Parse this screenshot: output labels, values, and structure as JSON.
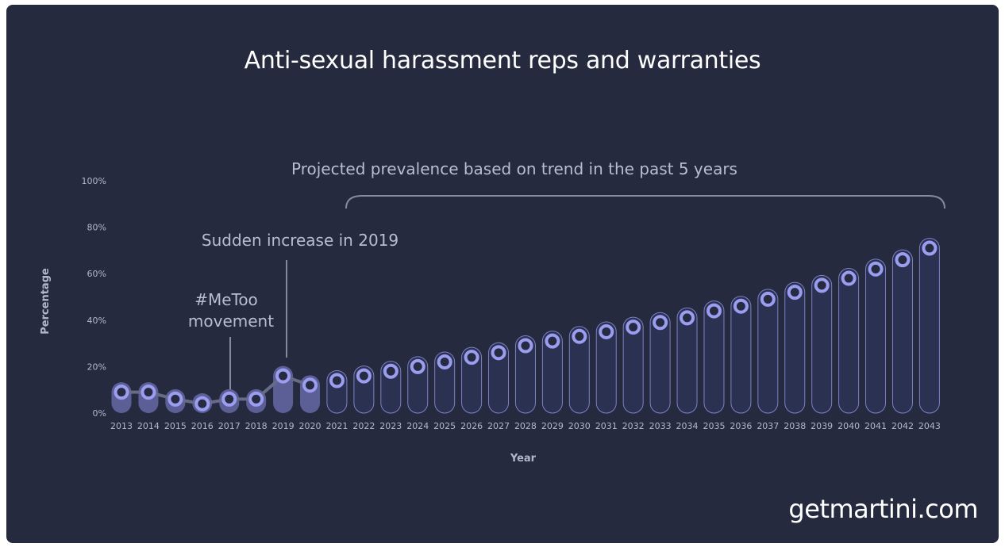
{
  "chart_data": {
    "type": "bar",
    "title": "Anti-sexual harassment reps and warranties",
    "xlabel": "Year",
    "ylabel": "Percentage",
    "ylim": [
      0,
      100
    ],
    "y_ticks": [
      "0%",
      "20%",
      "40%",
      "60%",
      "80%",
      "100%"
    ],
    "categories": [
      "2013",
      "2014",
      "2015",
      "2016",
      "2017",
      "2018",
      "2019",
      "2020",
      "2021",
      "2022",
      "2023",
      "2024",
      "2025",
      "2026",
      "2027",
      "2028",
      "2029",
      "2030",
      "2031",
      "2032",
      "2033",
      "2034",
      "2035",
      "2036",
      "2037",
      "2038",
      "2039",
      "2040",
      "2041",
      "2042",
      "2043"
    ],
    "values": [
      9,
      9,
      6,
      4,
      6,
      6,
      16,
      12,
      14,
      16,
      18,
      20,
      22,
      24,
      26,
      29,
      31,
      33,
      35,
      37,
      39,
      41,
      44,
      46,
      49,
      52,
      55,
      58,
      62,
      66,
      71
    ],
    "historical_until": "2020",
    "annotations": {
      "metoo_line1": "#MeToo",
      "metoo_line2": "movement",
      "increase": "Sudden increase in 2019",
      "projection": "Projected prevalence based on trend in the past 5 years"
    },
    "colors": {
      "background": "#252a3f",
      "historical_bar": "#5c5f96",
      "projected_bar": "#2b3150",
      "bar_outline": "#7d80c7",
      "marker": "#9b9ef0",
      "marker_center": "#262b42",
      "trend_line": "#676b88"
    },
    "grid": false,
    "legend": "none"
  },
  "brand": "getmartini.com"
}
